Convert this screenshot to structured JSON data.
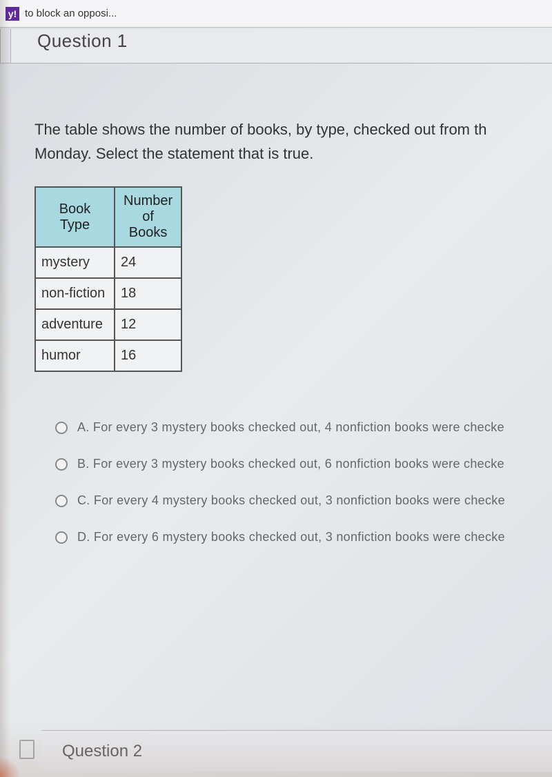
{
  "browser": {
    "tab_icon_letter": "y!",
    "tab_title": "to block an opposi..."
  },
  "question_header": {
    "title": "Question 1"
  },
  "prompt": {
    "line1": "The table shows the number of books, by type, checked out from th",
    "line2": "Monday.   Select the statement that is true."
  },
  "table": {
    "headers": {
      "col1": "Book Type",
      "col2": "Number of Books"
    },
    "rows": [
      {
        "type": "mystery",
        "count": "24"
      },
      {
        "type": "non-fiction",
        "count": "18"
      },
      {
        "type": "adventure",
        "count": "12"
      },
      {
        "type": "humor",
        "count": "16"
      }
    ],
    "header_bg": "#a8d8e0",
    "border_color": "#555555",
    "cell_bg": "#f0f2f4"
  },
  "options": [
    {
      "label": "A. For every 3 mystery books checked out, 4 nonfiction books were checke"
    },
    {
      "label": "B. For every 3 mystery books checked out, 6 nonfiction books were checke"
    },
    {
      "label": "C. For every 4 mystery books checked out, 3 nonfiction books were checke"
    },
    {
      "label": "D. For every 6 mystery books checked out, 3 nonfiction books were checke"
    }
  ],
  "question2": {
    "title": "Question 2"
  }
}
